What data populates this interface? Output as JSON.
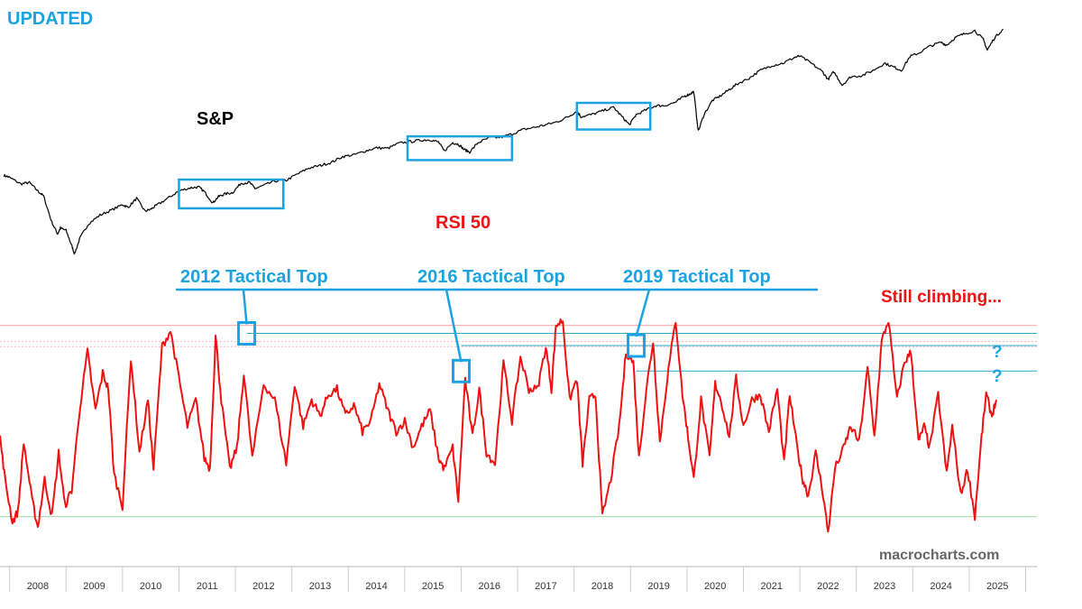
{
  "headline": "UPDATED",
  "chart_data": [
    {
      "type": "line",
      "series": [
        {
          "name": "S&P",
          "color": "#000000"
        }
      ],
      "x": [
        2007.9,
        2008.0,
        2008.2,
        2008.35,
        2008.5,
        2008.6,
        2008.75,
        2008.85,
        2008.9,
        2009.0,
        2009.1,
        2009.15,
        2009.25,
        2009.4,
        2009.6,
        2009.8,
        2010.0,
        2010.1,
        2010.25,
        2010.4,
        2010.5,
        2010.6,
        2010.8,
        2011.0,
        2011.2,
        2011.35,
        2011.45,
        2011.6,
        2011.7,
        2011.8,
        2011.95,
        2012.1,
        2012.25,
        2012.35,
        2012.5,
        2012.7,
        2012.9,
        2013.1,
        2013.3,
        2013.5,
        2013.7,
        2013.9,
        2014.1,
        2014.3,
        2014.5,
        2014.7,
        2014.9,
        2015.1,
        2015.3,
        2015.45,
        2015.6,
        2015.7,
        2015.85,
        2015.95,
        2016.05,
        2016.15,
        2016.3,
        2016.5,
        2016.7,
        2016.9,
        2017.1,
        2017.3,
        2017.5,
        2017.7,
        2017.9,
        2018.05,
        2018.12,
        2018.3,
        2018.5,
        2018.7,
        2018.85,
        2018.98,
        2019.1,
        2019.3,
        2019.45,
        2019.6,
        2019.8,
        2019.95,
        2020.05,
        2020.12,
        2020.2,
        2020.3,
        2020.45,
        2020.6,
        2020.75,
        2020.9,
        2021.1,
        2021.3,
        2021.5,
        2021.7,
        2021.9,
        2022.0,
        2022.2,
        2022.4,
        2022.5,
        2022.6,
        2022.75,
        2022.9,
        2023.1,
        2023.3,
        2023.5,
        2023.65,
        2023.8,
        2023.95,
        2024.1,
        2024.3,
        2024.5,
        2024.6,
        2024.75,
        2024.9,
        2025.1,
        2025.25,
        2025.32,
        2025.45,
        2025.6
      ],
      "values": [
        1500,
        1470,
        1380,
        1400,
        1290,
        1230,
        950,
        850,
        900,
        880,
        760,
        700,
        820,
        940,
        1020,
        1070,
        1130,
        1100,
        1200,
        1060,
        1080,
        1120,
        1200,
        1290,
        1330,
        1340,
        1280,
        1150,
        1220,
        1250,
        1270,
        1390,
        1400,
        1320,
        1360,
        1420,
        1430,
        1520,
        1610,
        1650,
        1700,
        1800,
        1830,
        1900,
        1960,
        1950,
        2050,
        2080,
        2110,
        2120,
        2070,
        1900,
        2060,
        2030,
        1930,
        1880,
        2060,
        2160,
        2170,
        2240,
        2340,
        2390,
        2450,
        2520,
        2650,
        2800,
        2650,
        2700,
        2800,
        2900,
        2650,
        2450,
        2700,
        2850,
        2950,
        2950,
        3050,
        3230,
        3300,
        3380,
        2300,
        2700,
        3100,
        3250,
        3450,
        3650,
        3850,
        4150,
        4350,
        4450,
        4700,
        4770,
        4450,
        4100,
        3800,
        4100,
        3600,
        3900,
        3950,
        4150,
        4450,
        4300,
        4150,
        4750,
        4900,
        5250,
        5450,
        5300,
        5700,
        5900,
        6100,
        5600,
        5050,
        5700,
        6200
      ],
      "ylog": true,
      "ylim": [
        650,
        6600
      ],
      "xlim": [
        2007.83,
        2025.88
      ],
      "labels": {
        "series_label": "S&P",
        "center_label": "RSI 50"
      },
      "highlight_boxes": [
        {
          "x0": 2011.0,
          "x1": 2012.85,
          "y0": 1090,
          "y1": 1440
        },
        {
          "x0": 2015.05,
          "x1": 2016.9,
          "y0": 1740,
          "y1": 2190
        },
        {
          "x0": 2018.05,
          "x1": 2019.35,
          "y0": 2340,
          "y1": 3030
        }
      ]
    },
    {
      "type": "line",
      "series": [
        {
          "name": "RSI",
          "color": "#ee1111"
        }
      ],
      "x": [
        2007.83,
        2007.92,
        2008.05,
        2008.15,
        2008.25,
        2008.4,
        2008.5,
        2008.62,
        2008.75,
        2008.87,
        2008.98,
        2009.1,
        2009.25,
        2009.38,
        2009.52,
        2009.65,
        2009.75,
        2009.85,
        2010.0,
        2010.15,
        2010.3,
        2010.45,
        2010.55,
        2010.7,
        2010.85,
        2011.0,
        2011.15,
        2011.3,
        2011.45,
        2011.55,
        2011.65,
        2011.75,
        2011.9,
        2012.03,
        2012.15,
        2012.3,
        2012.5,
        2012.7,
        2012.9,
        2013.05,
        2013.2,
        2013.35,
        2013.5,
        2013.65,
        2013.8,
        2013.95,
        2014.1,
        2014.25,
        2014.4,
        2014.55,
        2014.7,
        2014.85,
        2015.0,
        2015.15,
        2015.3,
        2015.45,
        2015.6,
        2015.7,
        2015.85,
        2015.95,
        2016.07,
        2016.2,
        2016.32,
        2016.45,
        2016.6,
        2016.75,
        2016.9,
        2017.05,
        2017.2,
        2017.35,
        2017.5,
        2017.6,
        2017.68,
        2017.8,
        2017.92,
        2018.05,
        2018.15,
        2018.27,
        2018.38,
        2018.5,
        2018.65,
        2018.8,
        2018.92,
        2019.05,
        2019.15,
        2019.28,
        2019.4,
        2019.52,
        2019.65,
        2019.8,
        2019.92,
        2020.02,
        2020.12,
        2020.25,
        2020.4,
        2020.5,
        2020.6,
        2020.75,
        2020.87,
        2021.0,
        2021.15,
        2021.3,
        2021.45,
        2021.6,
        2021.72,
        2021.82,
        2021.95,
        2022.05,
        2022.15,
        2022.28,
        2022.4,
        2022.5,
        2022.62,
        2022.78,
        2022.9,
        2023.05,
        2023.2,
        2023.32,
        2023.45,
        2023.57,
        2023.72,
        2023.85,
        2023.97,
        2024.1,
        2024.2,
        2024.3,
        2024.45,
        2024.6,
        2024.7,
        2024.85,
        2024.97,
        2025.1,
        2025.22,
        2025.3,
        2025.4,
        2025.48
      ],
      "values": [
        48,
        40,
        32,
        34,
        47,
        36,
        31,
        40,
        33,
        45,
        35,
        38,
        54,
        64,
        53,
        60,
        57,
        41,
        35,
        63,
        45,
        55,
        42,
        65,
        68,
        59,
        50,
        55,
        44,
        42,
        67,
        55,
        42,
        46,
        60,
        44,
        58,
        55,
        43,
        58,
        50,
        55,
        52,
        56,
        57,
        52,
        54,
        49,
        51,
        58,
        53,
        49,
        51,
        46,
        50,
        53,
        44,
        42,
        46,
        36,
        59,
        48,
        57,
        45,
        43,
        62,
        51,
        63,
        57,
        57,
        65,
        57,
        69,
        70,
        55,
        59,
        43,
        55,
        56,
        33,
        40,
        50,
        64,
        62,
        44,
        57,
        66,
        47,
        59,
        70,
        56,
        48,
        40,
        55,
        44,
        58,
        55,
        48,
        59,
        50,
        55,
        56,
        49,
        57,
        43,
        56,
        46,
        40,
        37,
        45,
        38,
        30,
        42,
        46,
        50,
        47,
        61,
        48,
        66,
        70,
        55,
        62,
        64,
        47,
        50,
        46,
        56,
        41,
        50,
        37,
        42,
        33,
        48,
        56,
        52,
        55
      ],
      "ylim": [
        28,
        72
      ],
      "xlim": [
        2007.83,
        2025.88
      ],
      "x_ticks": [
        "2008",
        "2009",
        "2010",
        "2011",
        "2012",
        "2013",
        "2014",
        "2015",
        "2016",
        "2017",
        "2018",
        "2019",
        "2020",
        "2021",
        "2022",
        "2023",
        "2024",
        "2025"
      ],
      "reference_lines": [
        {
          "y": 69,
          "color": "#ffa6a6"
        },
        {
          "y": 66,
          "color": "#f2b8b8"
        },
        {
          "y": 65,
          "color": "#f2b8b8"
        },
        {
          "y": 33,
          "color": "#9fd99f"
        },
        {
          "y": 67.5,
          "color": "#2aa8c8"
        },
        {
          "y": 65.2,
          "color": "#2aa8c8"
        },
        {
          "y": 60.4,
          "color": "#2aa8c8"
        }
      ],
      "question_marks": [
        "?",
        "?"
      ],
      "tops": [
        {
          "label": "2012 Tactical Top",
          "x": 2012.2,
          "y": 67.5
        },
        {
          "label": "2016 Tactical Top",
          "x": 2016.0,
          "y": 60.4
        },
        {
          "label": "2019 Tactical Top",
          "x": 2019.1,
          "y": 65.2
        }
      ],
      "note": "Still climbing...",
      "watermark": "macrocharts.com"
    }
  ]
}
